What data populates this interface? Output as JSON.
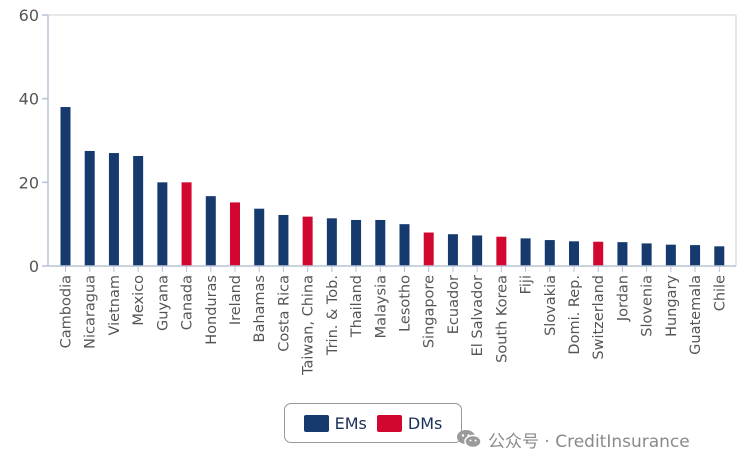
{
  "chart_data": {
    "type": "bar",
    "categories": [
      "Cambodia",
      "Nicaragua",
      "Vietnam",
      "Mexico",
      "Guyana",
      "Canada",
      "Honduras",
      "Ireland",
      "Bahamas",
      "Costa Rica",
      "Taiwan, China",
      "Trin. & Tob.",
      "Thailand",
      "Malaysia",
      "Lesotho",
      "Singapore",
      "Ecuador",
      "El Salvador",
      "South Korea",
      "Fiji",
      "Slovakia",
      "Domi. Rep.",
      "Switzerland",
      "Jordan",
      "Slovenia",
      "Hungary",
      "Guatemala",
      "Chile"
    ],
    "values": [
      38,
      27.5,
      27,
      26.3,
      20,
      20,
      16.7,
      15.2,
      13.7,
      12.2,
      11.8,
      11.4,
      11,
      11,
      10,
      8,
      7.6,
      7.3,
      7,
      6.6,
      6.2,
      5.9,
      5.8,
      5.7,
      5.4,
      5.1,
      5,
      4.7
    ],
    "groups": [
      "EMs",
      "EMs",
      "EMs",
      "EMs",
      "EMs",
      "DMs",
      "EMs",
      "DMs",
      "EMs",
      "EMs",
      "DMs",
      "EMs",
      "EMs",
      "EMs",
      "EMs",
      "DMs",
      "EMs",
      "EMs",
      "DMs",
      "EMs",
      "EMs",
      "EMs",
      "DMs",
      "EMs",
      "EMs",
      "EMs",
      "EMs",
      "EMs"
    ],
    "ylim": [
      0,
      60
    ],
    "yticks": [
      "0",
      "20",
      "40",
      "60"
    ],
    "legend": [
      {
        "name": "EMs",
        "color": "#163a6e"
      },
      {
        "name": "DMs",
        "color": "#d2072f"
      }
    ],
    "legend_position": "bottom"
  },
  "watermark": {
    "text": "公众号 · CreditInsurance",
    "icon": "wechat-icon"
  }
}
